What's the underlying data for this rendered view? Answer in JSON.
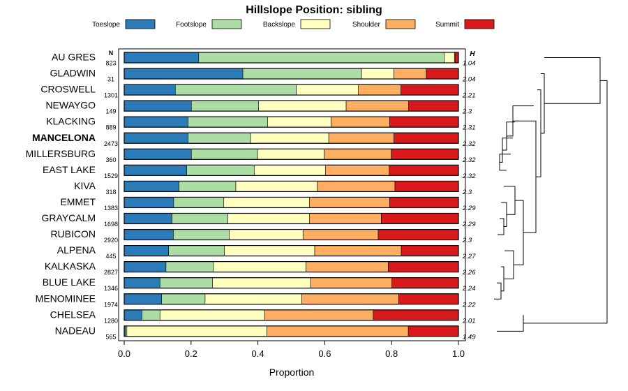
{
  "chart_data": {
    "type": "bar",
    "subtype": "stacked-horizontal-proportion",
    "title": "Hillslope Position: sibling",
    "xlabel": "Proportion",
    "ylabel": "",
    "xlim": [
      0,
      1
    ],
    "xticks": [
      "0.0",
      "0.2",
      "0.4",
      "0.6",
      "0.8",
      "1.0"
    ],
    "n_header": "N",
    "h_header": "H",
    "highlighted": "MANCELONA",
    "legend": [
      {
        "name": "Toeslope",
        "color": "#2b7bb9"
      },
      {
        "name": "Footslope",
        "color": "#abdda4"
      },
      {
        "name": "Backslope",
        "color": "#ffffbf"
      },
      {
        "name": "Shoulder",
        "color": "#fdae61"
      },
      {
        "name": "Summit",
        "color": "#d7191c"
      }
    ],
    "categories": [
      "AU GRES",
      "GLADWIN",
      "CROSWELL",
      "NEWAYGO",
      "KLACKING",
      "MANCELONA",
      "MILLERSBURG",
      "EAST LAKE",
      "KIVA",
      "EMMET",
      "GRAYCALM",
      "RUBICON",
      "ALPENA",
      "KALKASKA",
      "BLUE LAKE",
      "MENOMINEE",
      "CHELSEA",
      "NADEAU"
    ],
    "n": [
      "823",
      "31",
      "1301",
      "149",
      "889",
      "2473",
      "360",
      "1529",
      "318",
      "1383",
      "1698",
      "2920",
      "445",
      "2827",
      "1346",
      "1974",
      "1280",
      "565"
    ],
    "h": [
      "1.04",
      "2.04",
      "2.21",
      "2.3",
      "2.31",
      "2.32",
      "2.32",
      "2.32",
      "2.3",
      "2.29",
      "2.29",
      "2.3",
      "2.27",
      "2.26",
      "2.24",
      "2.22",
      "2.01",
      "1.49"
    ],
    "series": [
      {
        "name": "Toeslope",
        "values": [
          0.223,
          0.355,
          0.153,
          0.201,
          0.191,
          0.191,
          0.201,
          0.187,
          0.164,
          0.148,
          0.143,
          0.147,
          0.133,
          0.125,
          0.107,
          0.112,
          0.053,
          0.004
        ]
      },
      {
        "name": "Footslope",
        "values": [
          0.735,
          0.355,
          0.362,
          0.201,
          0.238,
          0.187,
          0.198,
          0.202,
          0.17,
          0.15,
          0.167,
          0.167,
          0.167,
          0.142,
          0.157,
          0.13,
          0.054,
          0.004
        ]
      },
      {
        "name": "Backslope",
        "values": [
          0.03,
          0.097,
          0.185,
          0.262,
          0.19,
          0.234,
          0.199,
          0.213,
          0.243,
          0.256,
          0.244,
          0.221,
          0.27,
          0.277,
          0.293,
          0.289,
          0.313,
          0.419
        ]
      },
      {
        "name": "Shoulder",
        "values": [
          0.002,
          0.097,
          0.128,
          0.187,
          0.175,
          0.195,
          0.201,
          0.191,
          0.233,
          0.24,
          0.215,
          0.225,
          0.259,
          0.246,
          0.244,
          0.29,
          0.325,
          0.423
        ]
      },
      {
        "name": "Summit",
        "values": [
          0.01,
          0.096,
          0.172,
          0.149,
          0.206,
          0.193,
          0.201,
          0.207,
          0.19,
          0.206,
          0.231,
          0.24,
          0.171,
          0.21,
          0.199,
          0.179,
          0.255,
          0.15
        ]
      }
    ]
  }
}
